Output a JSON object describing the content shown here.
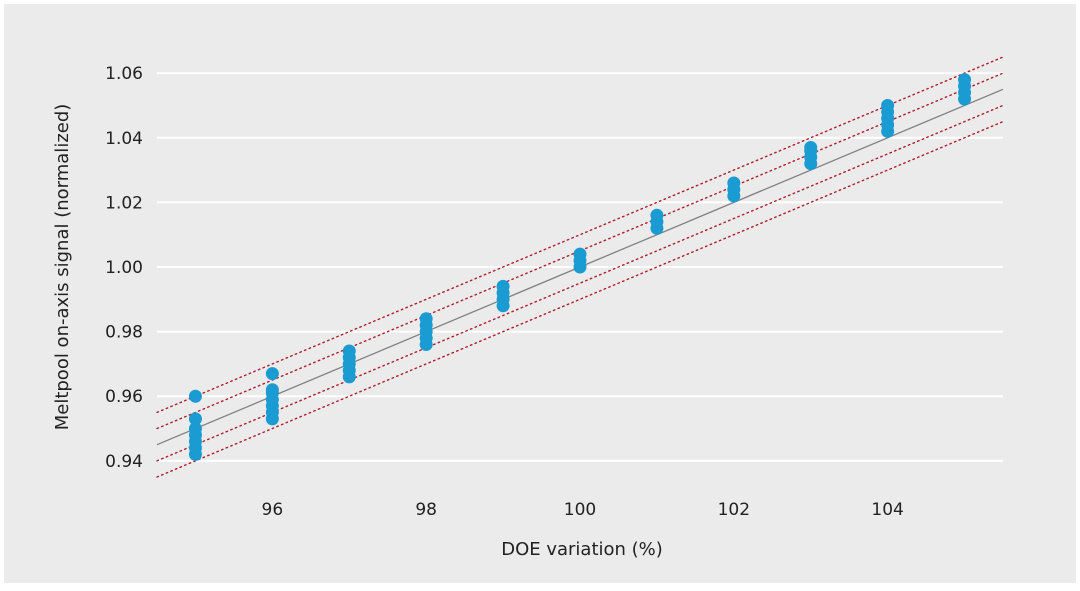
{
  "chart_data": {
    "type": "scatter",
    "title": "",
    "xlabel": "DOE variation (%)",
    "ylabel": "Meltpool on-axis signal (normalized)",
    "xlim": [
      94.5,
      105.5
    ],
    "ylim": [
      0.935,
      1.065
    ],
    "x_ticks": [
      96,
      98,
      100,
      102,
      104
    ],
    "y_ticks": [
      0.94,
      0.96,
      0.98,
      1.0,
      1.02,
      1.04,
      1.06
    ],
    "x_tick_labels": [
      "96",
      "98",
      "100",
      "102",
      "104"
    ],
    "y_tick_labels": [
      "0.94",
      "0.96",
      "0.98",
      "1.00",
      "1.02",
      "1.04",
      "1.06"
    ],
    "grid": "horizontal",
    "series": [
      {
        "points": [
          [
            95,
            0.942
          ],
          [
            95,
            0.944
          ],
          [
            95,
            0.946
          ],
          [
            95,
            0.948
          ],
          [
            95,
            0.95
          ],
          [
            95,
            0.953
          ],
          [
            95,
            0.96
          ],
          [
            96,
            0.953
          ],
          [
            96,
            0.955
          ],
          [
            96,
            0.957
          ],
          [
            96,
            0.959
          ],
          [
            96,
            0.961
          ],
          [
            96,
            0.962
          ],
          [
            96,
            0.967
          ],
          [
            97,
            0.966
          ],
          [
            97,
            0.968
          ],
          [
            97,
            0.97
          ],
          [
            97,
            0.972
          ],
          [
            97,
            0.974
          ],
          [
            98,
            0.976
          ],
          [
            98,
            0.978
          ],
          [
            98,
            0.98
          ],
          [
            98,
            0.982
          ],
          [
            98,
            0.984
          ],
          [
            99,
            0.988
          ],
          [
            99,
            0.99
          ],
          [
            99,
            0.992
          ],
          [
            99,
            0.994
          ],
          [
            100,
            1.0
          ],
          [
            100,
            1.002
          ],
          [
            100,
            1.004
          ],
          [
            101,
            1.012
          ],
          [
            101,
            1.014
          ],
          [
            101,
            1.016
          ],
          [
            102,
            1.022
          ],
          [
            102,
            1.024
          ],
          [
            102,
            1.026
          ],
          [
            103,
            1.032
          ],
          [
            103,
            1.034
          ],
          [
            103,
            1.036
          ],
          [
            103,
            1.037
          ],
          [
            104,
            1.042
          ],
          [
            104,
            1.044
          ],
          [
            104,
            1.046
          ],
          [
            104,
            1.048
          ],
          [
            104,
            1.05
          ],
          [
            105,
            1.052
          ],
          [
            105,
            1.054
          ],
          [
            105,
            1.056
          ],
          [
            105,
            1.058
          ]
        ]
      }
    ],
    "fit_line": {
      "slope": 0.01,
      "intercept": 0.0
    },
    "bounds": [
      {
        "label": "inner-upper",
        "offset": 0.005
      },
      {
        "label": "inner-lower",
        "offset": -0.005
      },
      {
        "label": "outer-upper",
        "offset": 0.01
      },
      {
        "label": "outer-lower",
        "offset": -0.01
      }
    ],
    "colors": {
      "background": "#ebebeb",
      "grid": "#ffffff",
      "points": "#1a9bd2",
      "fit_line": "#808080",
      "bounds": "#b01d2a"
    }
  }
}
